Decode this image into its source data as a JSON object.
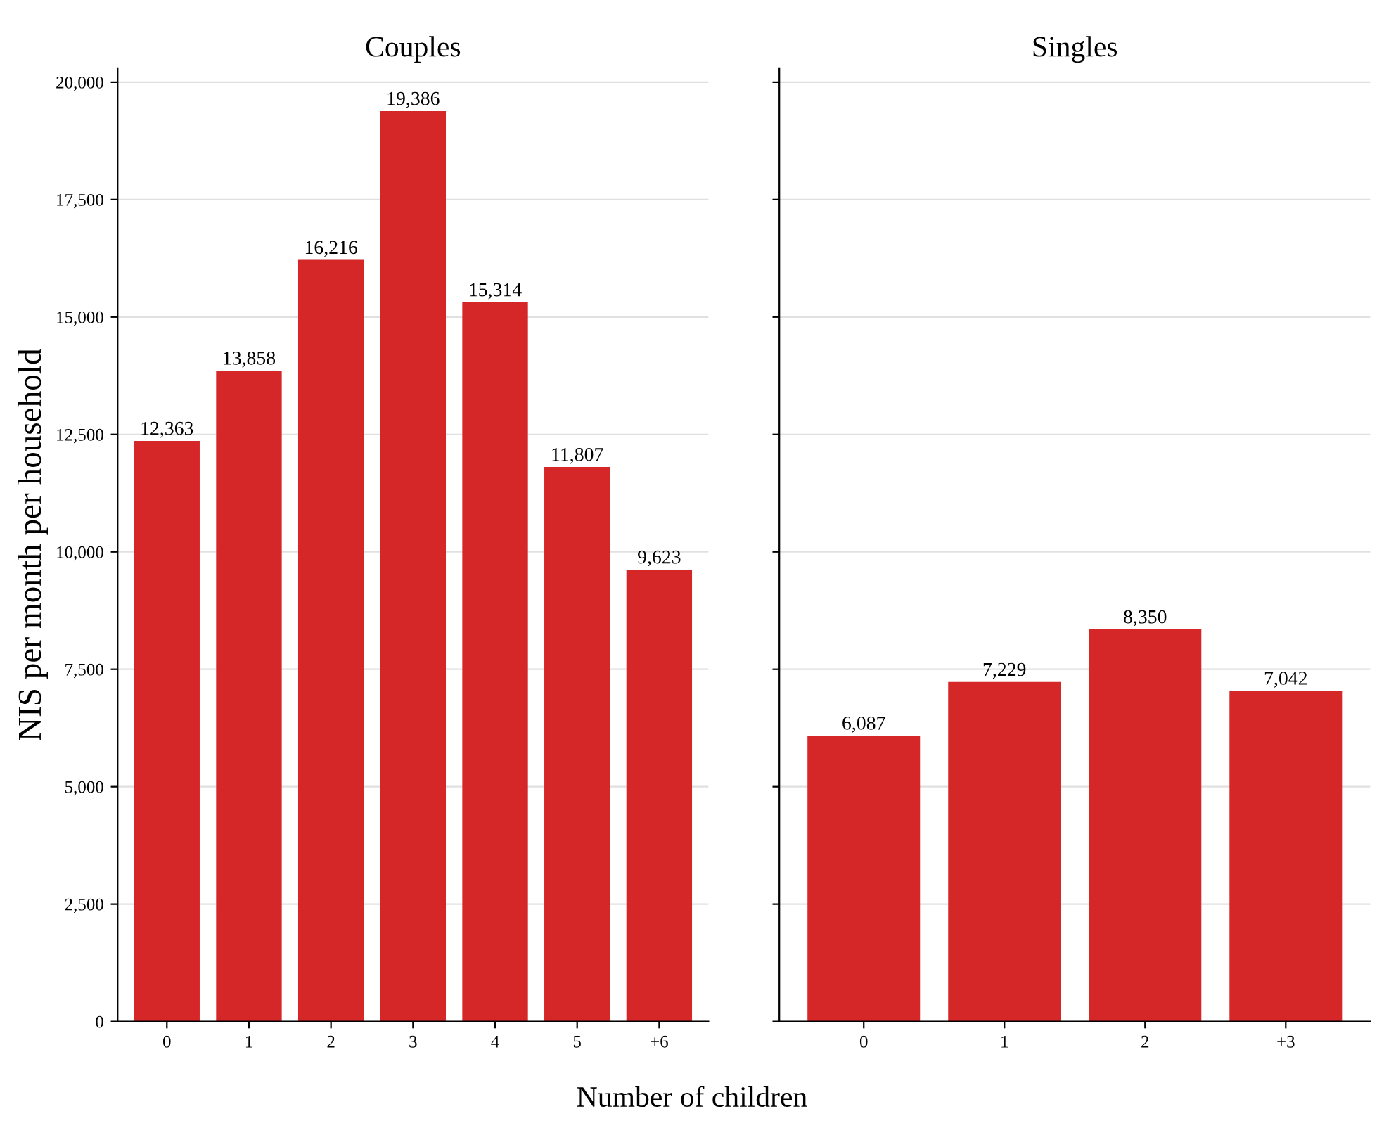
{
  "chart_data": [
    {
      "type": "bar",
      "title": "Couples",
      "xlabel": "Number of children",
      "ylabel": "NIS per month per household",
      "categories": [
        "0",
        "1",
        "2",
        "3",
        "4",
        "5",
        "+6"
      ],
      "values": [
        12363,
        13858,
        16216,
        19386,
        15314,
        11807,
        9623
      ],
      "color": "#d62728",
      "value_labels": [
        "12,363",
        "13,858",
        "16,216",
        "19,386",
        "15,314",
        "11,807",
        "9,623"
      ],
      "ylim": [
        0,
        20300
      ],
      "yticks": [
        0,
        {
          "value": 2500,
          "label": "2,500"
        },
        {
          "value": 5000,
          "label": "5,000"
        },
        {
          "value": 7500,
          "label": "7,500"
        },
        {
          "value": 10000,
          "label": "10,000"
        },
        {
          "value": 12500,
          "label": "12,500"
        },
        {
          "value": 15000,
          "label": "15,000"
        },
        {
          "value": 17500,
          "label": "17,500"
        },
        {
          "value": 20000,
          "label": "20,000"
        }
      ],
      "grid": "y"
    },
    {
      "type": "bar",
      "title": "Singles",
      "categories": [
        "0",
        "1",
        "2",
        "+3"
      ],
      "values": [
        6087,
        7229,
        8350,
        7042
      ],
      "color": "#d62728",
      "value_labels": [
        "6,087",
        "7,229",
        "8,350",
        "7,042"
      ],
      "ylim": [
        0,
        20300
      ],
      "yticks": [
        {
          "value": 0,
          "label": null
        },
        {
          "value": 2500,
          "label": null
        },
        {
          "value": 5000,
          "label": null
        },
        {
          "value": 7500,
          "label": null
        },
        {
          "value": 10000,
          "label": null
        },
        {
          "value": 12500,
          "label": null
        },
        {
          "value": 15000,
          "label": null
        },
        {
          "value": 17500,
          "label": null
        },
        {
          "value": 20000,
          "label": null
        }
      ],
      "grid": "y",
      "tick_labels": "x"
    }
  ]
}
